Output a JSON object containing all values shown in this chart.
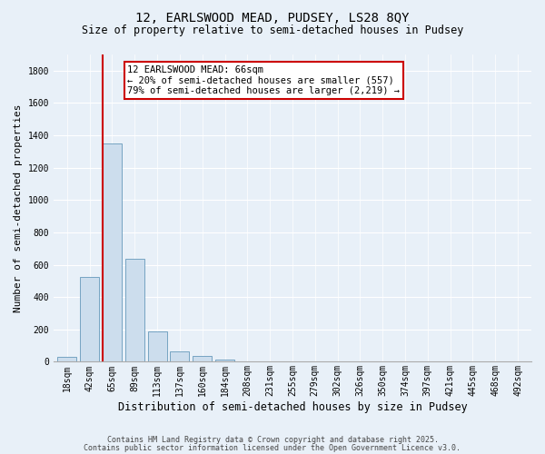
{
  "title1": "12, EARLSWOOD MEAD, PUDSEY, LS28 8QY",
  "title2": "Size of property relative to semi-detached houses in Pudsey",
  "xlabel": "Distribution of semi-detached houses by size in Pudsey",
  "ylabel": "Number of semi-detached properties",
  "categories": [
    "18sqm",
    "42sqm",
    "65sqm",
    "89sqm",
    "113sqm",
    "137sqm",
    "160sqm",
    "184sqm",
    "208sqm",
    "231sqm",
    "255sqm",
    "279sqm",
    "302sqm",
    "326sqm",
    "350sqm",
    "374sqm",
    "397sqm",
    "421sqm",
    "445sqm",
    "468sqm",
    "492sqm"
  ],
  "values": [
    30,
    527,
    1348,
    635,
    185,
    65,
    35,
    15,
    0,
    0,
    0,
    0,
    0,
    0,
    0,
    0,
    0,
    0,
    0,
    0,
    0
  ],
  "bar_color": "#ccdded",
  "bar_edge_color": "#6699bb",
  "vline_color": "#cc0000",
  "annotation_title": "12 EARLSWOOD MEAD: 66sqm",
  "annotation_line1": "← 20% of semi-detached houses are smaller (557)",
  "annotation_line2": "79% of semi-detached houses are larger (2,219) →",
  "annotation_box_color": "#ffffff",
  "annotation_box_edge": "#cc0000",
  "ylim": [
    0,
    1900
  ],
  "yticks": [
    0,
    200,
    400,
    600,
    800,
    1000,
    1200,
    1400,
    1600,
    1800
  ],
  "footer1": "Contains HM Land Registry data © Crown copyright and database right 2025.",
  "footer2": "Contains public sector information licensed under the Open Government Licence v3.0.",
  "bg_color": "#e8f0f8",
  "plot_bg_color": "#e8f0f8",
  "title1_fontsize": 10,
  "title2_fontsize": 8.5,
  "ylabel_fontsize": 8,
  "xlabel_fontsize": 8.5,
  "tick_fontsize": 7,
  "footer_fontsize": 6,
  "ann_fontsize": 7.5
}
